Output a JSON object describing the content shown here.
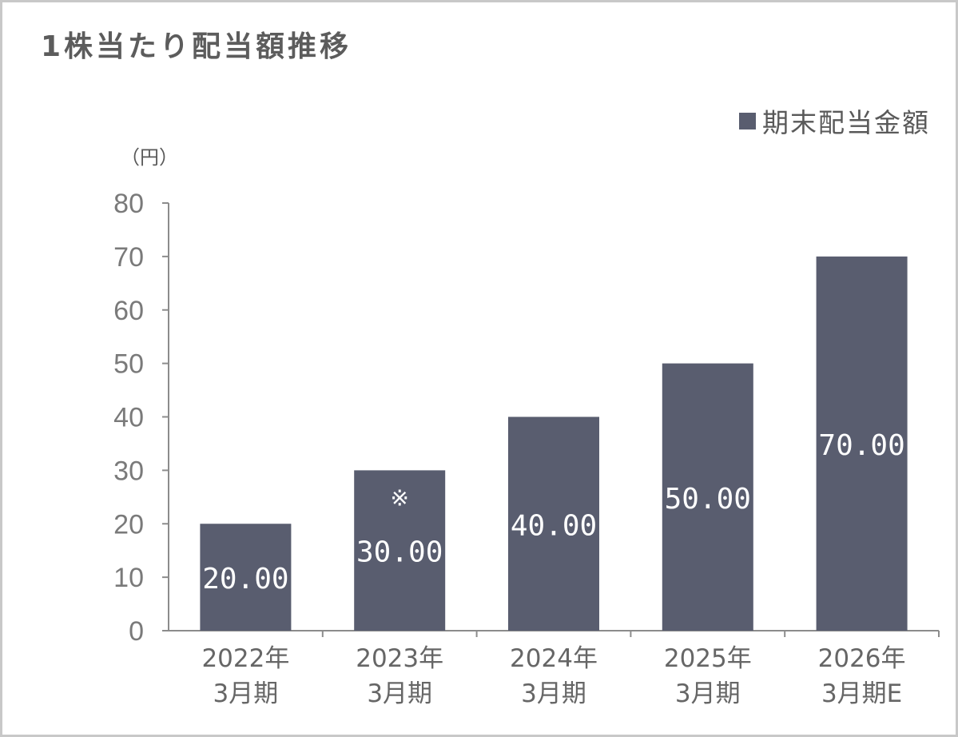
{
  "title": "1株当たり配当額推移",
  "unit": "（円）",
  "colors": {
    "bar": "#595d6f",
    "axis": "#8c8c8c",
    "tick_text": "#7a7a7a",
    "bar_label": "#ffffff"
  },
  "chart_data": {
    "type": "bar",
    "title": "1株当たり配当額推移",
    "ylabel": "（円）",
    "ylim": [
      0,
      80
    ],
    "yticks": [
      0,
      10,
      20,
      30,
      40,
      50,
      60,
      70,
      80
    ],
    "legend": {
      "position": "top-right",
      "entries": [
        "期末配当金額"
      ]
    },
    "categories": [
      [
        "2022年",
        "3月期"
      ],
      [
        "2023年",
        "3月期"
      ],
      [
        "2024年",
        "3月期"
      ],
      [
        "2025年",
        "3月期"
      ],
      [
        "2026年",
        "3月期E"
      ]
    ],
    "series": [
      {
        "name": "期末配当金額",
        "values": [
          20,
          30,
          40,
          50,
          70
        ],
        "labels": [
          "20.00",
          "30.00",
          "40.00",
          "50.00",
          "70.00"
        ]
      }
    ],
    "annotations": [
      {
        "category_index": 1,
        "text": "※"
      }
    ],
    "grid": false
  }
}
